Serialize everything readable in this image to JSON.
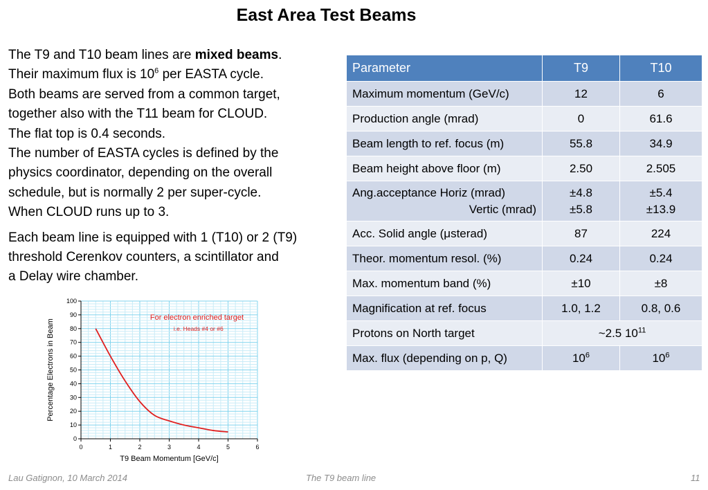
{
  "title": "East Area Test Beams",
  "intro": {
    "p1_line1_pre": "The T9 and T10 beam lines are ",
    "p1_line1_bold": "mixed beams",
    "p1_line1_post": ".",
    "p1_line2_pre": "Their maximum flux is 10",
    "p1_line2_sup": "6",
    "p1_line2_post": " per EASTA cycle.",
    "p1_line3": "Both beams are served from a common target,",
    "p1_line4": "together also with the T11 beam for CLOUD.",
    "p1_line5": "The flat top is 0.4 seconds.",
    "p1_line6": "The number of EASTA cycles is defined by the",
    "p1_line7": "physics coordinator, depending on the overall",
    "p1_line8": "schedule, but is normally 2 per super-cycle.",
    "p1_line9": "When CLOUD runs up to 3.",
    "p2_line1": "Each beam line is equipped with 1 (T10) or 2 (T9)",
    "p2_line2": "threshold Cerenkov counters, a scintillator and",
    "p2_line3": "a Delay wire chamber."
  },
  "table": {
    "headers": [
      "Parameter",
      "T9",
      "T10"
    ],
    "rows": [
      {
        "param": "Maximum momentum (GeV/c)",
        "t9": "12",
        "t10": "6"
      },
      {
        "param": "Production angle (mrad)",
        "t9": "0",
        "t10": "61.6"
      },
      {
        "param": "Beam length to ref. focus (m)",
        "t9": "55.8",
        "t10": "34.9"
      },
      {
        "param": "Beam height above floor (m)",
        "t9": "2.50",
        "t10": "2.505"
      },
      {
        "param": "Ang.acceptance Horiz (mrad)",
        "param2": "Vertic (mrad)",
        "t9": "±4.8",
        "t9b": "±5.8",
        "t10": "±5.4",
        "t10b": "±13.9"
      },
      {
        "param": "Acc. Solid angle (μsterad)",
        "t9": "87",
        "t10": "224"
      },
      {
        "param": "Theor. momentum resol. (%)",
        "t9": "0.24",
        "t10": "0.24"
      },
      {
        "param": "Max. momentum band (%)",
        "t9": "±10",
        "t10": "±8"
      },
      {
        "param": "Magnification at ref. focus",
        "t9": "1.0, 1.2",
        "t10": "0.8, 0.6"
      },
      {
        "param": "Protons on North target",
        "merged_base": "~2.5 10",
        "merged_sup": "11"
      },
      {
        "param": "Max. flux (depending on p, Q)",
        "t9_base": "10",
        "t9_sup": "6",
        "t10_base": "10",
        "t10_sup": "6"
      }
    ]
  },
  "chart_data": {
    "type": "line",
    "xlabel": "T9 Beam Momentum [GeV/c]",
    "ylabel": "Percentage Electrons in Beam",
    "xlim": [
      0,
      6
    ],
    "ylim": [
      0,
      100
    ],
    "xticks": [
      "0",
      "1",
      "2",
      "3",
      "4",
      "5",
      "6"
    ],
    "yticks": [
      "0",
      "10",
      "20",
      "30",
      "40",
      "50",
      "60",
      "70",
      "80",
      "90",
      "100"
    ],
    "grid": true,
    "annotation1": "For electron enriched target",
    "annotation2": "i.e. Heads #4 or #6",
    "series": [
      {
        "color": "#e02020",
        "x": [
          0.5,
          1.0,
          1.5,
          2.0,
          2.5,
          3.0,
          3.5,
          4.0,
          4.5,
          5.0
        ],
        "y": [
          80,
          60,
          42,
          27,
          17,
          13,
          10,
          8,
          6,
          5
        ]
      }
    ]
  },
  "footer": {
    "left": "Lau Gatignon, 10 March 2014",
    "center": "The T9 beam line",
    "right": "11"
  }
}
